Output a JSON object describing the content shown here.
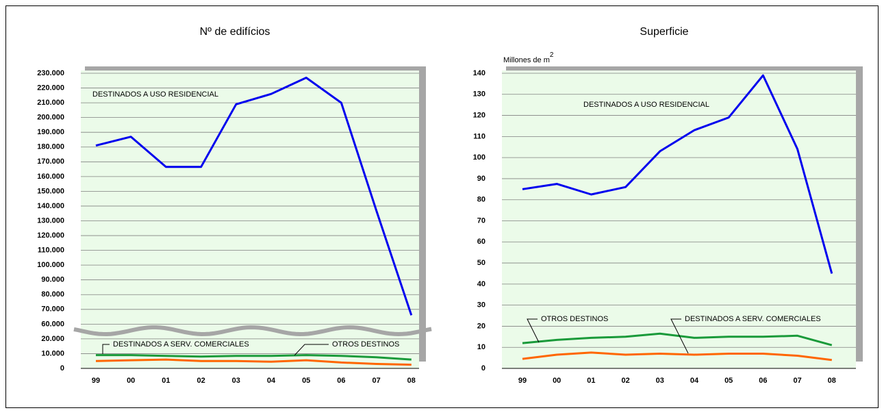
{
  "chart_data": [
    {
      "type": "line",
      "title": "Nº de edifícios",
      "categories": [
        "99",
        "00",
        "01",
        "02",
        "03",
        "04",
        "05",
        "06",
        "07",
        "08"
      ],
      "ylim": [
        0,
        230000
      ],
      "yticks": [
        0,
        {
          "value": 10000,
          "label": "10.000"
        },
        {
          "value": 20000,
          "label": "20.000"
        },
        {
          "value": 60000,
          "label": "60.000"
        },
        {
          "value": 70000,
          "label": "70.000"
        },
        {
          "value": 80000,
          "label": "80.000"
        },
        {
          "value": 90000,
          "label": "90.000"
        },
        {
          "value": 100000,
          "label": "100.000"
        },
        {
          "value": 110000,
          "label": "110.000"
        },
        {
          "value": 120000,
          "label": "120.000"
        },
        {
          "value": 130000,
          "label": "130.000"
        },
        {
          "value": 140000,
          "label": "140.000"
        },
        {
          "value": 150000,
          "label": "150.000"
        },
        {
          "value": 160000,
          "label": "160.000"
        },
        {
          "value": 170000,
          "label": "170.000"
        },
        {
          "value": 180000,
          "label": "180.000"
        },
        {
          "value": 190000,
          "label": "190.000"
        },
        {
          "value": 200000,
          "label": "200.000"
        },
        {
          "value": 210000,
          "label": "210.000"
        },
        {
          "value": 220000,
          "label": "220.000"
        },
        {
          "value": 230000,
          "label": "230.000"
        }
      ],
      "grid": true,
      "series": [
        {
          "name": "DESTINADOS A USO RESIDENCIAL",
          "color": "#0000ee",
          "values": [
            181000,
            187000,
            166500,
            166500,
            209000,
            216000,
            227000,
            210000,
            137000,
            66000
          ]
        },
        {
          "name": "OTROS DESTINOS",
          "color": "#1a9a3a",
          "values": [
            9000,
            9000,
            8500,
            8000,
            8500,
            8500,
            9000,
            8500,
            7500,
            6000
          ]
        },
        {
          "name": "DESTINADOS A SERV. COMERCIALES",
          "color": "#ff6600",
          "values": [
            5000,
            5500,
            6000,
            5000,
            5000,
            4500,
            5500,
            4000,
            3000,
            2500
          ]
        }
      ]
    },
    {
      "type": "line",
      "title": "Superficie",
      "ylabel": "Millones de m",
      "ylabel_sup": "2",
      "categories": [
        "99",
        "00",
        "01",
        "02",
        "03",
        "04",
        "05",
        "06",
        "07",
        "08"
      ],
      "ylim": [
        0,
        140
      ],
      "yticks": [
        0,
        10,
        20,
        30,
        40,
        50,
        60,
        70,
        80,
        90,
        100,
        110,
        120,
        130,
        140
      ],
      "grid": true,
      "series": [
        {
          "name": "DESTINADOS A USO RESIDENCIAL",
          "color": "#0000ee",
          "values": [
            85,
            87.5,
            82.5,
            86,
            103,
            113,
            119,
            139,
            104,
            45
          ]
        },
        {
          "name": "OTROS DESTINOS",
          "color": "#1a9a3a",
          "values": [
            12,
            13.5,
            14.5,
            15,
            16.5,
            14.5,
            15,
            15,
            15.5,
            11
          ]
        },
        {
          "name": "DESTINADOS A SERV. COMERCIALES",
          "color": "#ff6600",
          "values": [
            4.5,
            6.5,
            7.5,
            6.5,
            7,
            6.5,
            7,
            7,
            6,
            4
          ]
        }
      ]
    }
  ]
}
